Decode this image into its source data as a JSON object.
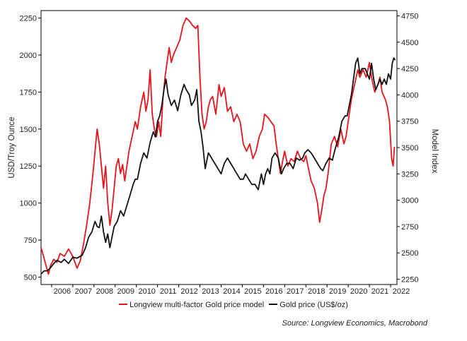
{
  "chart_data": {
    "type": "line",
    "title": "",
    "xlabel": "",
    "ylabel_left": "USD/Troy Ounce",
    "ylabel_right": "Model Index",
    "x_ticks": [
      "2006",
      "2007",
      "2008",
      "2009",
      "2010",
      "2011",
      "2012",
      "2013",
      "2014",
      "2015",
      "2016",
      "2017",
      "2018",
      "2019",
      "2020",
      "2021",
      "2022"
    ],
    "xlim": [
      2005.5,
      2022.3
    ],
    "y_left": {
      "lim": [
        450,
        2300
      ],
      "ticks": [
        500,
        750,
        1000,
        1250,
        1500,
        1750,
        2000,
        2250
      ]
    },
    "y_right": {
      "lim": [
        2200,
        4800
      ],
      "ticks": [
        2250,
        2500,
        2750,
        3000,
        3250,
        3500,
        3750,
        4000,
        4250,
        4500,
        4750
      ]
    },
    "grid": false,
    "legend_position": "bottom",
    "series": [
      {
        "name": "Longview multi-factor Gold price model",
        "color": "#e8141b",
        "axis": "left",
        "points": [
          [
            2005.5,
            700
          ],
          [
            2005.6,
            650
          ],
          [
            2005.75,
            570
          ],
          [
            2005.85,
            520
          ],
          [
            2005.95,
            580
          ],
          [
            2006.1,
            620
          ],
          [
            2006.25,
            600
          ],
          [
            2006.4,
            660
          ],
          [
            2006.6,
            640
          ],
          [
            2006.8,
            690
          ],
          [
            2007.0,
            640
          ],
          [
            2007.2,
            560
          ],
          [
            2007.35,
            610
          ],
          [
            2007.5,
            720
          ],
          [
            2007.65,
            850
          ],
          [
            2007.8,
            1000
          ],
          [
            2007.95,
            1200
          ],
          [
            2008.05,
            1350
          ],
          [
            2008.15,
            1500
          ],
          [
            2008.25,
            1400
          ],
          [
            2008.35,
            1250
          ],
          [
            2008.45,
            1100
          ],
          [
            2008.55,
            1250
          ],
          [
            2008.65,
            1000
          ],
          [
            2008.75,
            850
          ],
          [
            2008.85,
            950
          ],
          [
            2008.95,
            1100
          ],
          [
            2009.05,
            1250
          ],
          [
            2009.15,
            1300
          ],
          [
            2009.25,
            1200
          ],
          [
            2009.35,
            1260
          ],
          [
            2009.45,
            1150
          ],
          [
            2009.55,
            1250
          ],
          [
            2009.65,
            1350
          ],
          [
            2009.8,
            1450
          ],
          [
            2009.95,
            1550
          ],
          [
            2010.05,
            1500
          ],
          [
            2010.2,
            1650
          ],
          [
            2010.35,
            1750
          ],
          [
            2010.45,
            1620
          ],
          [
            2010.55,
            1700
          ],
          [
            2010.65,
            1900
          ],
          [
            2010.75,
            1600
          ],
          [
            2010.85,
            1500
          ],
          [
            2010.95,
            1450
          ],
          [
            2011.05,
            1550
          ],
          [
            2011.15,
            1450
          ],
          [
            2011.25,
            1700
          ],
          [
            2011.35,
            1850
          ],
          [
            2011.45,
            1950
          ],
          [
            2011.55,
            2050
          ],
          [
            2011.65,
            1950
          ],
          [
            2011.75,
            2000
          ],
          [
            2011.9,
            2050
          ],
          [
            2012.05,
            2100
          ],
          [
            2012.2,
            2200
          ],
          [
            2012.35,
            2250
          ],
          [
            2012.5,
            2230
          ],
          [
            2012.65,
            2200
          ],
          [
            2012.8,
            2180
          ],
          [
            2012.9,
            2200
          ],
          [
            2013.0,
            1850
          ],
          [
            2013.1,
            1600
          ],
          [
            2013.2,
            1500
          ],
          [
            2013.3,
            1550
          ],
          [
            2013.4,
            1650
          ],
          [
            2013.5,
            1700
          ],
          [
            2013.6,
            1720
          ],
          [
            2013.75,
            1600
          ],
          [
            2013.9,
            1800
          ],
          [
            2014.0,
            1720
          ],
          [
            2014.15,
            1780
          ],
          [
            2014.3,
            1620
          ],
          [
            2014.45,
            1650
          ],
          [
            2014.6,
            1550
          ],
          [
            2014.75,
            1600
          ],
          [
            2014.9,
            1550
          ],
          [
            2015.05,
            1400
          ],
          [
            2015.2,
            1350
          ],
          [
            2015.35,
            1400
          ],
          [
            2015.5,
            1300
          ],
          [
            2015.65,
            1350
          ],
          [
            2015.8,
            1450
          ],
          [
            2015.95,
            1500
          ],
          [
            2016.05,
            1600
          ],
          [
            2016.2,
            1580
          ],
          [
            2016.35,
            1550
          ],
          [
            2016.5,
            1520
          ],
          [
            2016.6,
            1400
          ],
          [
            2016.7,
            1300
          ],
          [
            2016.8,
            1200
          ],
          [
            2016.9,
            1280
          ],
          [
            2017.0,
            1350
          ],
          [
            2017.15,
            1250
          ],
          [
            2017.3,
            1300
          ],
          [
            2017.45,
            1280
          ],
          [
            2017.6,
            1350
          ],
          [
            2017.75,
            1300
          ],
          [
            2017.9,
            1280
          ],
          [
            2018.0,
            1320
          ],
          [
            2018.1,
            1250
          ],
          [
            2018.25,
            1150
          ],
          [
            2018.4,
            1100
          ],
          [
            2018.55,
            1000
          ],
          [
            2018.65,
            870
          ],
          [
            2018.75,
            950
          ],
          [
            2018.85,
            1050
          ],
          [
            2018.95,
            1100
          ],
          [
            2019.05,
            1200
          ],
          [
            2019.2,
            1400
          ],
          [
            2019.35,
            1450
          ],
          [
            2019.5,
            1380
          ],
          [
            2019.65,
            1500
          ],
          [
            2019.8,
            1400
          ],
          [
            2019.9,
            1450
          ],
          [
            2020.0,
            1550
          ],
          [
            2020.15,
            1700
          ],
          [
            2020.3,
            1800
          ],
          [
            2020.45,
            1900
          ],
          [
            2020.55,
            1850
          ],
          [
            2020.7,
            1900
          ],
          [
            2020.85,
            1850
          ],
          [
            2021.0,
            1950
          ],
          [
            2021.1,
            1850
          ],
          [
            2021.25,
            1750
          ],
          [
            2021.4,
            1800
          ],
          [
            2021.5,
            1850
          ],
          [
            2021.6,
            1750
          ],
          [
            2021.75,
            1700
          ],
          [
            2021.85,
            1650
          ],
          [
            2021.95,
            1550
          ],
          [
            2022.05,
            1300
          ],
          [
            2022.12,
            1250
          ],
          [
            2022.18,
            1380
          ]
        ]
      },
      {
        "name": "Gold price (US$/oz)",
        "color": "#111111",
        "axis": "right",
        "points": [
          [
            2005.5,
            2300
          ],
          [
            2005.65,
            2330
          ],
          [
            2005.8,
            2330
          ],
          [
            2005.95,
            2360
          ],
          [
            2006.1,
            2400
          ],
          [
            2006.25,
            2430
          ],
          [
            2006.45,
            2410
          ],
          [
            2006.6,
            2440
          ],
          [
            2006.8,
            2400
          ],
          [
            2007.0,
            2460
          ],
          [
            2007.2,
            2450
          ],
          [
            2007.45,
            2480
          ],
          [
            2007.6,
            2550
          ],
          [
            2007.75,
            2650
          ],
          [
            2007.9,
            2700
          ],
          [
            2008.05,
            2800
          ],
          [
            2008.15,
            2750
          ],
          [
            2008.25,
            2740
          ],
          [
            2008.35,
            2850
          ],
          [
            2008.45,
            2700
          ],
          [
            2008.55,
            2600
          ],
          [
            2008.65,
            2680
          ],
          [
            2008.75,
            2550
          ],
          [
            2008.85,
            2650
          ],
          [
            2008.95,
            2750
          ],
          [
            2009.1,
            2800
          ],
          [
            2009.25,
            2900
          ],
          [
            2009.4,
            2850
          ],
          [
            2009.55,
            2950
          ],
          [
            2009.7,
            3050
          ],
          [
            2009.85,
            3150
          ],
          [
            2009.95,
            3200
          ],
          [
            2010.05,
            3200
          ],
          [
            2010.2,
            3350
          ],
          [
            2010.35,
            3450
          ],
          [
            2010.5,
            3400
          ],
          [
            2010.65,
            3550
          ],
          [
            2010.8,
            3650
          ],
          [
            2010.9,
            3600
          ],
          [
            2011.0,
            3750
          ],
          [
            2011.1,
            3800
          ],
          [
            2011.2,
            3900
          ],
          [
            2011.3,
            4050
          ],
          [
            2011.4,
            4150
          ],
          [
            2011.5,
            4000
          ],
          [
            2011.65,
            3900
          ],
          [
            2011.8,
            3950
          ],
          [
            2011.95,
            3850
          ],
          [
            2012.1,
            4000
          ],
          [
            2012.25,
            4100
          ],
          [
            2012.35,
            4050
          ],
          [
            2012.5,
            4000
          ],
          [
            2012.6,
            3900
          ],
          [
            2012.75,
            3950
          ],
          [
            2012.85,
            4050
          ],
          [
            2012.95,
            3750
          ],
          [
            2013.05,
            3650
          ],
          [
            2013.15,
            3500
          ],
          [
            2013.25,
            3300
          ],
          [
            2013.4,
            3450
          ],
          [
            2013.55,
            3400
          ],
          [
            2013.7,
            3350
          ],
          [
            2013.85,
            3300
          ],
          [
            2014.0,
            3250
          ],
          [
            2014.15,
            3350
          ],
          [
            2014.3,
            3400
          ],
          [
            2014.45,
            3350
          ],
          [
            2014.6,
            3300
          ],
          [
            2014.75,
            3250
          ],
          [
            2014.9,
            3200
          ],
          [
            2015.05,
            3200
          ],
          [
            2015.15,
            3250
          ],
          [
            2015.3,
            3200
          ],
          [
            2015.45,
            3150
          ],
          [
            2015.6,
            3150
          ],
          [
            2015.75,
            3100
          ],
          [
            2015.9,
            3250
          ],
          [
            2016.0,
            3150
          ],
          [
            2016.1,
            3250
          ],
          [
            2016.2,
            3300
          ],
          [
            2016.3,
            3250
          ],
          [
            2016.4,
            3400
          ],
          [
            2016.55,
            3450
          ],
          [
            2016.7,
            3400
          ],
          [
            2016.85,
            3250
          ],
          [
            2016.95,
            3300
          ],
          [
            2017.1,
            3350
          ],
          [
            2017.25,
            3350
          ],
          [
            2017.4,
            3300
          ],
          [
            2017.55,
            3400
          ],
          [
            2017.7,
            3380
          ],
          [
            2017.85,
            3400
          ],
          [
            2017.95,
            3450
          ],
          [
            2018.1,
            3480
          ],
          [
            2018.25,
            3450
          ],
          [
            2018.4,
            3400
          ],
          [
            2018.55,
            3350
          ],
          [
            2018.7,
            3300
          ],
          [
            2018.8,
            3280
          ],
          [
            2018.95,
            3350
          ],
          [
            2019.1,
            3400
          ],
          [
            2019.25,
            3380
          ],
          [
            2019.4,
            3500
          ],
          [
            2019.55,
            3600
          ],
          [
            2019.7,
            3750
          ],
          [
            2019.85,
            3800
          ],
          [
            2019.95,
            3800
          ],
          [
            2020.05,
            3900
          ],
          [
            2020.15,
            4000
          ],
          [
            2020.25,
            4150
          ],
          [
            2020.35,
            4300
          ],
          [
            2020.45,
            4350
          ],
          [
            2020.55,
            4200
          ],
          [
            2020.65,
            4250
          ],
          [
            2020.8,
            4250
          ],
          [
            2020.9,
            4200
          ],
          [
            2021.0,
            4150
          ],
          [
            2021.1,
            4300
          ],
          [
            2021.2,
            4150
          ],
          [
            2021.3,
            4050
          ],
          [
            2021.4,
            4100
          ],
          [
            2021.5,
            4150
          ],
          [
            2021.6,
            4100
          ],
          [
            2021.7,
            4150
          ],
          [
            2021.8,
            4100
          ],
          [
            2021.9,
            4200
          ],
          [
            2022.0,
            4150
          ],
          [
            2022.08,
            4300
          ],
          [
            2022.15,
            4350
          ],
          [
            2022.22,
            4330
          ]
        ]
      }
    ]
  },
  "legend": {
    "model_label": "Longview multi-factor Gold price model",
    "gold_label": "Gold price (US$/oz)",
    "model_color": "#e8141b",
    "gold_color": "#111111"
  },
  "source": "Source: Longview Economics, Macrobond"
}
